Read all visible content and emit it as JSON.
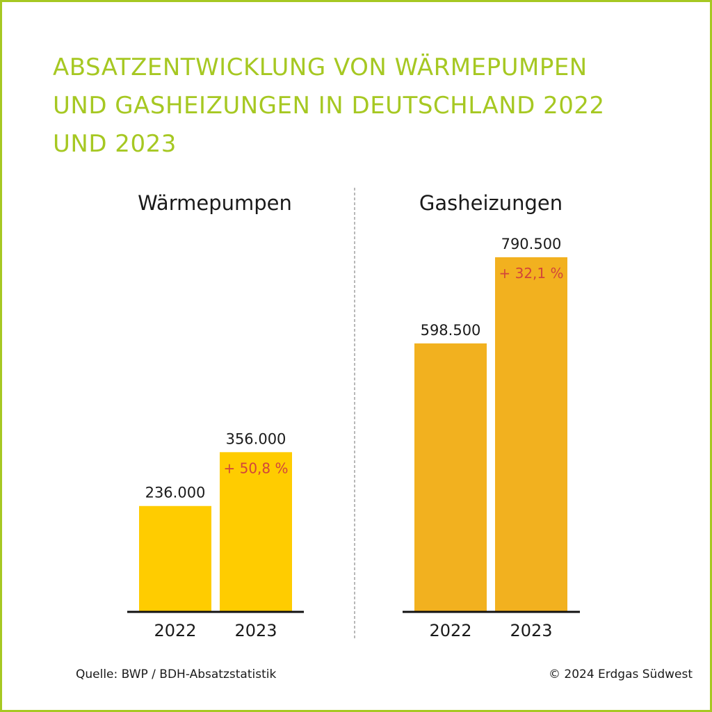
{
  "title_lines": [
    "ABSATZENTWICKLUNG VON WÄRMEPUMPEN",
    "UND GASHEIZUNGEN IN DEUTSCHLAND 2022",
    "UND 2023"
  ],
  "colors": {
    "accent": "#a6c822",
    "waermepumpen_bar": "#ffcc00",
    "gasheizungen_bar": "#f2b11f",
    "change_text": "#d2453a",
    "text": "#1a1a1a"
  },
  "chart_data": [
    {
      "type": "bar",
      "title": "Wärmepumpen",
      "categories": [
        "2022",
        "2023"
      ],
      "values": [
        236000,
        356000
      ],
      "value_labels": [
        "236.000",
        "356.000"
      ],
      "change_labels": [
        "",
        "+ 50,8 %"
      ]
    },
    {
      "type": "bar",
      "title": "Gasheizungen",
      "categories": [
        "2022",
        "2023"
      ],
      "values": [
        598500,
        790500
      ],
      "value_labels": [
        "598.500",
        "790.500"
      ],
      "change_labels": [
        "",
        "+ 32,1 %"
      ]
    }
  ],
  "footer": {
    "source": "Quelle: BWP / BDH-Absatzstatistik",
    "copyright": "© 2024 Erdgas Südwest"
  }
}
